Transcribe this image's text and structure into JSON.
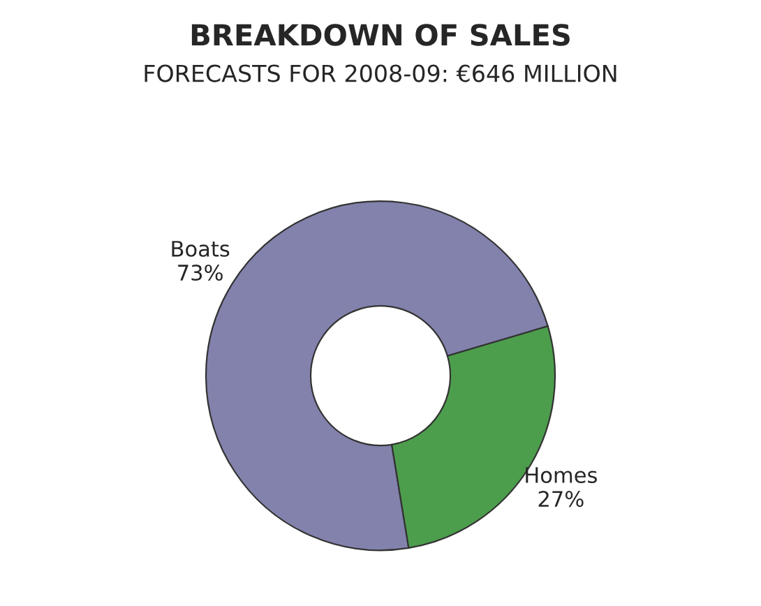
{
  "chart_data": {
    "type": "donut",
    "title": "BREAKDOWN OF SALES",
    "subtitle": "FORECASTS FOR 2008-09: €646 MILLION",
    "categories": [
      "Boats",
      "Homes"
    ],
    "values": [
      73,
      27
    ],
    "colors": [
      "#8282ad",
      "#4c9e4c"
    ],
    "value_labels": [
      "73%",
      "27%"
    ]
  }
}
